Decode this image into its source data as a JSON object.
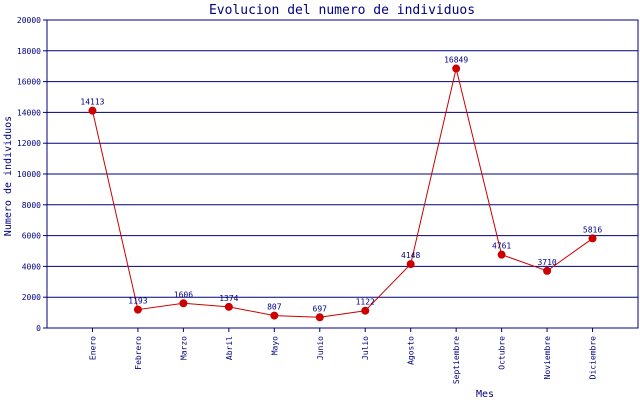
{
  "chart_data": {
    "type": "line",
    "title": "Evolucion del numero de individuos",
    "xlabel": "Mes",
    "ylabel": "Numero de individuos",
    "ylim": [
      0,
      20000
    ],
    "yticks": [
      0,
      2000,
      4000,
      6000,
      8000,
      10000,
      12000,
      14000,
      16000,
      18000,
      20000
    ],
    "grid": "horizontal",
    "categories": [
      "Enero",
      "Febrero",
      "Marzo",
      "Abril",
      "Mayo",
      "Junio",
      "Julio",
      "Agosto",
      "Septiembre",
      "Octubre",
      "Noviembre",
      "Diciembre"
    ],
    "values": [
      14113,
      1193,
      1606,
      1374,
      807,
      697,
      1122,
      4148,
      16849,
      4761,
      3710,
      5816
    ],
    "colors": {
      "line": "#cc0000",
      "marker": "#cc0000",
      "grid": "#00007f",
      "axis": "#00007f",
      "text": "#00007f"
    }
  }
}
